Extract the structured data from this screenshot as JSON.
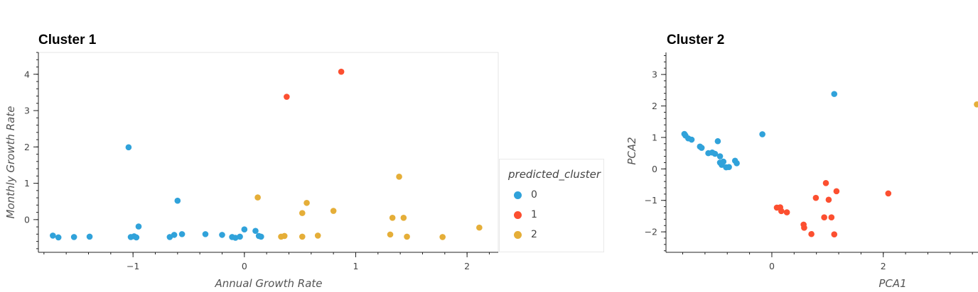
{
  "colors": {
    "0": "#30a2da",
    "1": "#fc4f30",
    "2": "#e5ae38"
  },
  "legend": {
    "title": "predicted_cluster",
    "items": [
      {
        "label": "0",
        "cluster": "0"
      },
      {
        "label": "1",
        "cluster": "1"
      },
      {
        "label": "2",
        "cluster": "2"
      }
    ]
  },
  "chart_data": [
    {
      "type": "scatter",
      "title": "Cluster 1",
      "xlabel": "Annual Growth Rate",
      "ylabel": "Monthly Growth Rate",
      "xlim": [
        -1.85,
        2.28
      ],
      "ylim": [
        -0.9,
        4.6
      ],
      "xticks": [
        -1,
        0,
        1,
        2
      ],
      "xtick_labels": [
        "−1",
        "0",
        "1",
        "2"
      ],
      "yticks": [
        0,
        1,
        2,
        3,
        4
      ],
      "ytick_labels": [
        "0",
        "1",
        "2",
        "3",
        "4"
      ],
      "grid": false,
      "legend_position": "right",
      "series": [
        {
          "cluster": "0",
          "points": [
            [
              -1.72,
              -0.44
            ],
            [
              -1.67,
              -0.49
            ],
            [
              -1.53,
              -0.48
            ],
            [
              -1.39,
              -0.47
            ],
            [
              -1.04,
              1.99
            ],
            [
              -1.02,
              -0.48
            ],
            [
              -0.99,
              -0.46
            ],
            [
              -0.97,
              -0.49
            ],
            [
              -0.95,
              -0.19
            ],
            [
              -0.67,
              -0.48
            ],
            [
              -0.63,
              -0.42
            ],
            [
              -0.6,
              0.52
            ],
            [
              -0.56,
              -0.4
            ],
            [
              -0.35,
              -0.4
            ],
            [
              -0.2,
              -0.42
            ],
            [
              -0.11,
              -0.48
            ],
            [
              -0.08,
              -0.5
            ],
            [
              -0.04,
              -0.47
            ],
            [
              0.0,
              -0.27
            ],
            [
              0.1,
              -0.31
            ],
            [
              0.13,
              -0.45
            ],
            [
              0.15,
              -0.47
            ]
          ]
        },
        {
          "cluster": "1",
          "points": [
            [
              0.38,
              3.38
            ],
            [
              0.87,
              4.07
            ]
          ]
        },
        {
          "cluster": "2",
          "points": [
            [
              0.12,
              0.61
            ],
            [
              0.33,
              -0.47
            ],
            [
              0.36,
              -0.45
            ],
            [
              0.52,
              0.18
            ],
            [
              0.52,
              -0.47
            ],
            [
              0.56,
              0.46
            ],
            [
              0.66,
              -0.44
            ],
            [
              0.8,
              0.24
            ],
            [
              1.31,
              -0.41
            ],
            [
              1.33,
              0.05
            ],
            [
              1.39,
              1.18
            ],
            [
              1.43,
              0.05
            ],
            [
              1.46,
              -0.47
            ],
            [
              1.78,
              -0.48
            ],
            [
              2.11,
              -0.22
            ]
          ]
        }
      ]
    },
    {
      "type": "scatter",
      "title": "Cluster 2",
      "xlabel": "PCA1",
      "ylabel": "PCA2",
      "xlim": [
        -1.9,
        3.7
      ],
      "ylim": [
        -2.65,
        3.7
      ],
      "xticks": [
        0,
        2
      ],
      "xtick_labels": [
        "0",
        "2"
      ],
      "yticks": [
        -2,
        -1,
        0,
        1,
        2,
        3
      ],
      "ytick_labels": [
        "−2",
        "−1",
        "0",
        "1",
        "2",
        "3"
      ],
      "grid": false,
      "series": [
        {
          "cluster": "0",
          "points": [
            [
              -1.57,
              1.11
            ],
            [
              -1.55,
              1.06
            ],
            [
              -1.5,
              0.97
            ],
            [
              -1.44,
              0.93
            ],
            [
              -1.29,
              0.71
            ],
            [
              -1.26,
              0.67
            ],
            [
              -1.14,
              0.5
            ],
            [
              -1.07,
              0.52
            ],
            [
              -1.02,
              0.48
            ],
            [
              -0.97,
              0.88
            ],
            [
              -0.93,
              0.4
            ],
            [
              -0.93,
              0.2
            ],
            [
              -0.9,
              0.13
            ],
            [
              -0.87,
              0.23
            ],
            [
              -0.82,
              0.05
            ],
            [
              -0.77,
              0.06
            ],
            [
              -0.66,
              0.26
            ],
            [
              -0.63,
              0.18
            ],
            [
              -0.17,
              1.1
            ],
            [
              1.12,
              2.38
            ]
          ]
        },
        {
          "cluster": "1",
          "points": [
            [
              0.09,
              -1.23
            ],
            [
              0.15,
              -1.22
            ],
            [
              0.17,
              -1.34
            ],
            [
              0.27,
              -1.38
            ],
            [
              0.57,
              -1.77
            ],
            [
              0.58,
              -1.87
            ],
            [
              0.71,
              -2.07
            ],
            [
              0.79,
              -0.92
            ],
            [
              0.94,
              -1.54
            ],
            [
              0.97,
              -0.45
            ],
            [
              1.02,
              -0.98
            ],
            [
              1.07,
              -1.54
            ],
            [
              1.12,
              -2.08
            ],
            [
              1.16,
              -0.71
            ],
            [
              2.09,
              -0.78
            ]
          ]
        },
        {
          "cluster": "2",
          "points": [
            [
              3.68,
              2.05
            ]
          ]
        }
      ]
    }
  ]
}
